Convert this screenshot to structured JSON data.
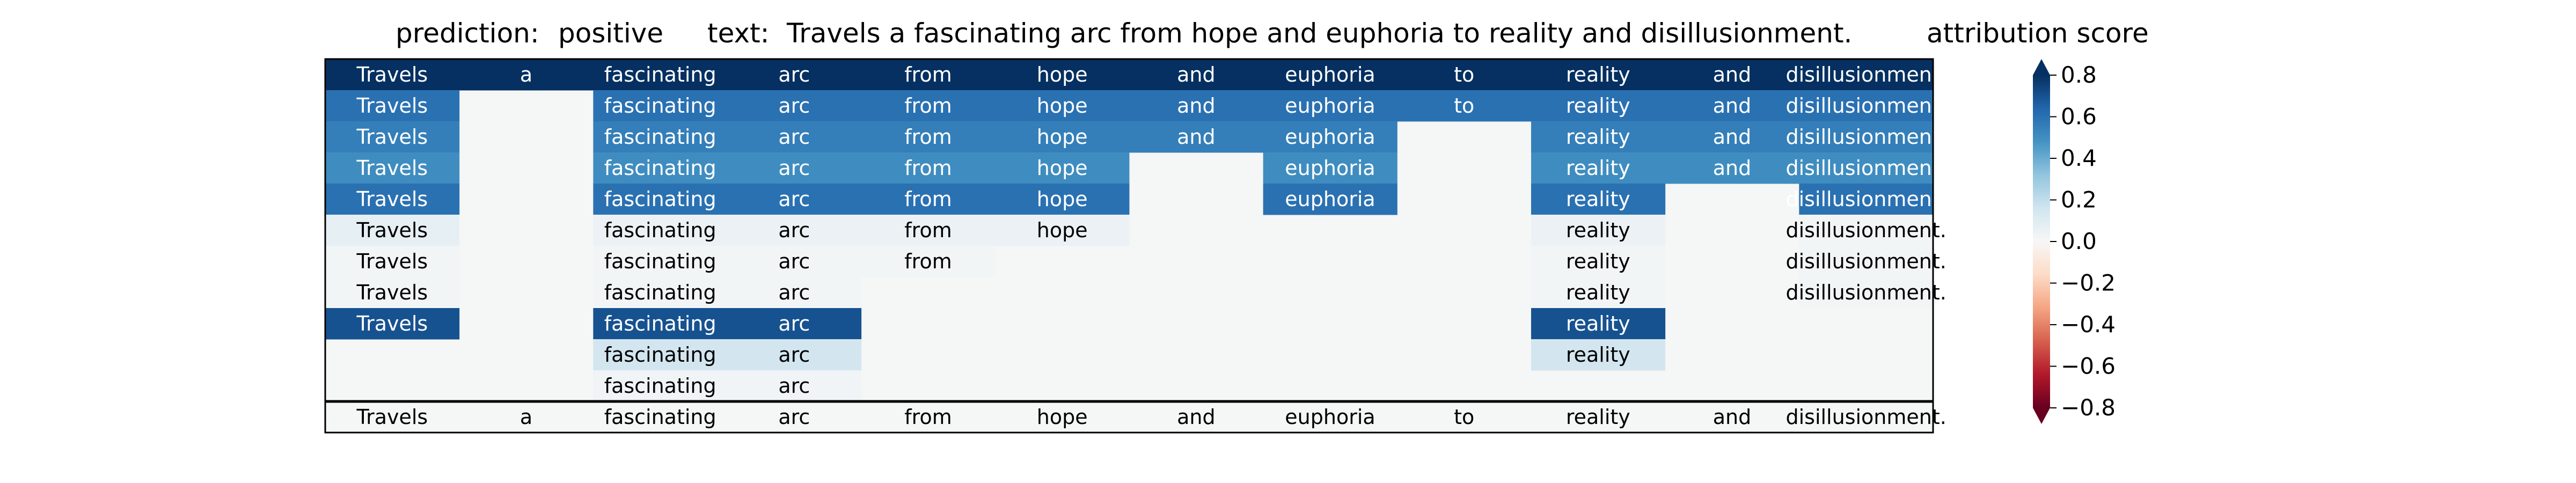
{
  "chart_data": {
    "type": "heatmap",
    "title": {
      "prediction_label": "prediction:",
      "prediction_value": "positive",
      "text_label": "text:",
      "text_value": "Travels a fascinating arc from hope and euphoria to reality and disillusionment."
    },
    "colorbar_label": "attribution score",
    "colorbar_ticks": [
      0.8,
      0.6,
      0.4,
      0.2,
      0.0,
      -0.2,
      -0.4,
      -0.6,
      -0.8
    ],
    "colorbar_tick_labels": [
      "0.8",
      "0.6",
      "0.4",
      "0.2",
      "0.0",
      "−0.2",
      "−0.4",
      "−0.6",
      "−0.8"
    ],
    "colorbar_extend": "both",
    "colormap": "RdBu",
    "vmin": -0.8,
    "vmax": 0.8,
    "columns": [
      "Travels",
      "a",
      "fascinating",
      "arc",
      "from",
      "hope",
      "and",
      "euphoria",
      "to",
      "reality",
      "and",
      "disillusionment."
    ],
    "rows": [
      [
        0.8,
        0.8,
        0.8,
        0.8,
        0.8,
        0.8,
        0.8,
        0.8,
        0.8,
        0.8,
        0.8,
        0.8
      ],
      [
        0.6,
        null,
        0.6,
        0.6,
        0.6,
        0.6,
        0.6,
        0.6,
        0.6,
        0.6,
        0.6,
        0.6
      ],
      [
        0.55,
        null,
        0.55,
        0.55,
        0.55,
        0.55,
        0.55,
        0.55,
        null,
        0.55,
        0.55,
        0.55
      ],
      [
        0.5,
        null,
        0.5,
        0.5,
        0.5,
        0.5,
        null,
        0.5,
        null,
        0.5,
        0.5,
        0.5
      ],
      [
        0.6,
        null,
        0.6,
        0.6,
        0.6,
        0.6,
        null,
        0.6,
        null,
        0.6,
        null,
        0.6
      ],
      [
        0.07,
        null,
        0.05,
        0.05,
        0.05,
        0.05,
        null,
        null,
        null,
        0.05,
        null,
        0.02
      ],
      [
        0.02,
        null,
        0.02,
        0.02,
        0.02,
        null,
        null,
        null,
        null,
        0.02,
        null,
        0.02
      ],
      [
        0.02,
        null,
        0.02,
        0.02,
        null,
        null,
        null,
        null,
        null,
        0.02,
        null,
        0.02
      ],
      [
        0.7,
        null,
        0.7,
        0.7,
        null,
        null,
        null,
        null,
        null,
        0.7,
        null,
        null
      ],
      [
        null,
        null,
        0.15,
        0.15,
        null,
        null,
        null,
        null,
        null,
        0.15,
        null,
        null
      ],
      [
        null,
        null,
        0.03,
        0.03,
        null,
        null,
        null,
        null,
        null,
        null,
        null,
        null
      ]
    ],
    "baseline_row": [
      0.0,
      0.0,
      0.0,
      0.0,
      0.0,
      0.0,
      0.0,
      0.0,
      0.0,
      0.0,
      0.0,
      0.0
    ]
  }
}
